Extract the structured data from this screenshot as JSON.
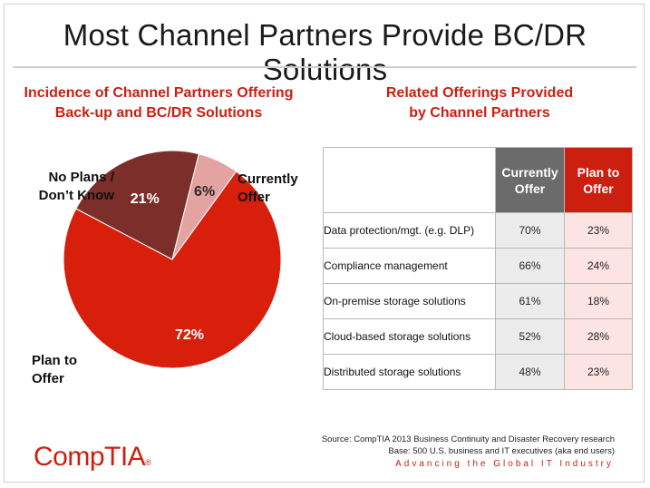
{
  "title": "Most Channel Partners Provide BC/DR Solutions",
  "left_subtitle": [
    "Incidence of Channel Partners Offering",
    "Back-up and BC/DR Solutions"
  ],
  "right_subtitle": [
    "Related Offerings Provided",
    "by Channel Partners"
  ],
  "chart_data": [
    {
      "type": "pie",
      "title": "Incidence of Channel Partners Offering Back-up and BC/DR Solutions",
      "slices": [
        {
          "name": "Currently Offer",
          "value": 72,
          "label": "72%",
          "color": "#d81f0c"
        },
        {
          "name": "Plan to Offer",
          "value": 21,
          "label": "21%",
          "color": "#7b2e2a"
        },
        {
          "name": "No Plans / Don’t Know",
          "value": 6,
          "label": "6%",
          "color": "#e2a3a1"
        }
      ]
    },
    {
      "type": "table",
      "title": "Related Offerings Provided by Channel Partners",
      "columns": [
        "Currently Offer",
        "Plan to Offer"
      ],
      "rows": [
        {
          "label": "Data protection/mgt. (e.g. DLP)",
          "values": [
            "70%",
            "23%"
          ]
        },
        {
          "label": "Compliance management",
          "values": [
            "66%",
            "24%"
          ]
        },
        {
          "label": "On-premise storage solutions",
          "values": [
            "61%",
            "18%"
          ]
        },
        {
          "label": "Cloud-based storage solutions",
          "values": [
            "52%",
            "28%"
          ]
        },
        {
          "label": "Distributed storage solutions",
          "values": [
            "48%",
            "23%"
          ]
        }
      ]
    }
  ],
  "pie_labels": {
    "currently": [
      "Currently",
      "Offer"
    ],
    "plan": [
      "Plan to",
      "Offer"
    ],
    "noplans": [
      "No Plans /",
      "Don’t Know"
    ]
  },
  "table_headers": {
    "currently": [
      "Currently",
      "Offer"
    ],
    "plan": [
      "Plan to",
      "Offer"
    ]
  },
  "source": [
    "Source: CompTIA 2013 Business Continuity and Disaster Recovery research",
    "Base: 500 U.S. business and IT executives (aka end users)"
  ],
  "tagline": "Advancing the Global IT Industry",
  "logo": {
    "text": "CompTIA",
    "mark": "®"
  }
}
